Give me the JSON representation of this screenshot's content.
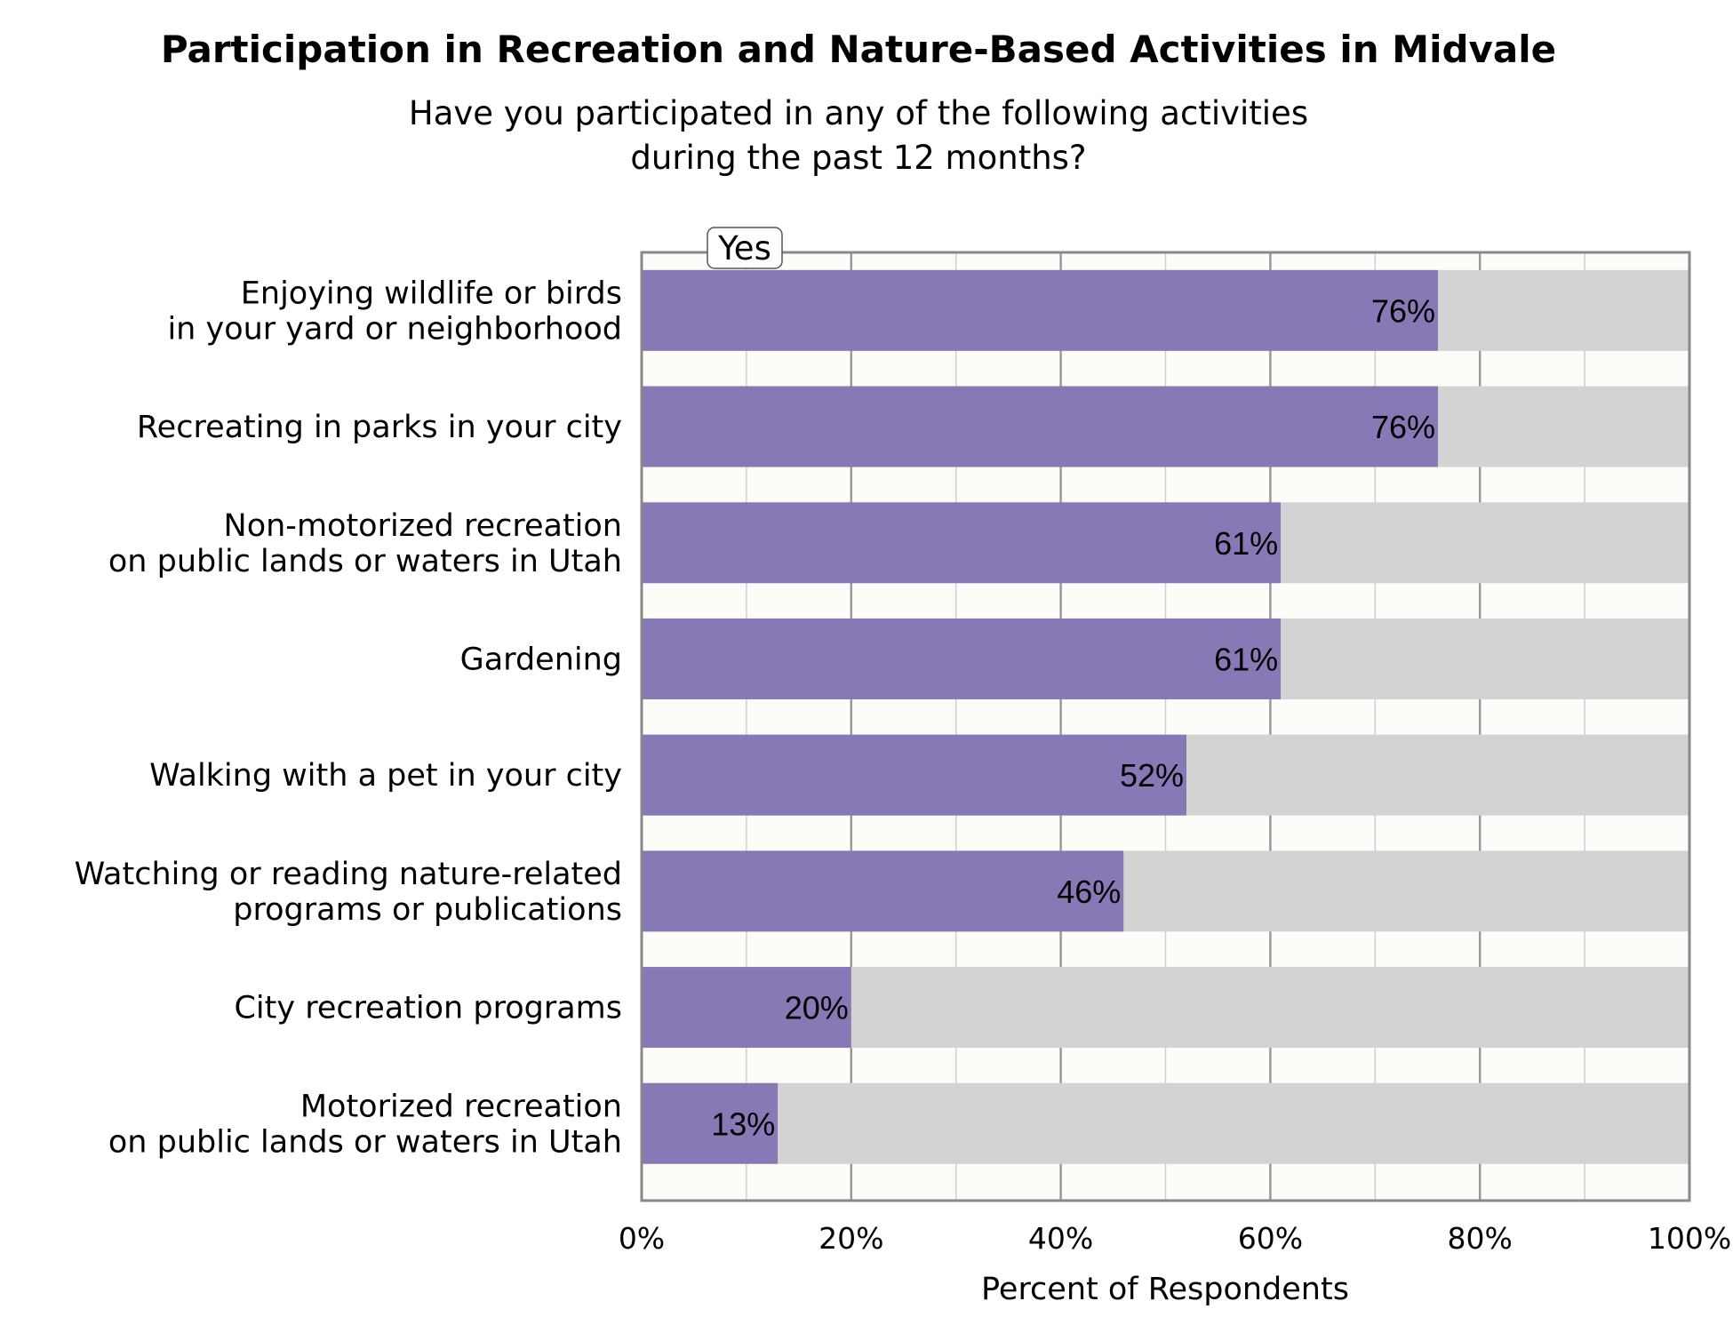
{
  "chart_data": {
    "type": "bar",
    "orientation": "horizontal",
    "stacked": true,
    "title": "Participation in Recreation and Nature-Based Activities in Midvale",
    "subtitle_lines": [
      "Have you participated in any of the following activities",
      "during the past 12 months?"
    ],
    "xlabel": "Percent of Respondents",
    "ylabel": "",
    "xlim": [
      0,
      100
    ],
    "x_ticks": [
      0,
      20,
      40,
      60,
      80,
      100
    ],
    "x_tick_labels": [
      "0%",
      "20%",
      "40%",
      "60%",
      "80%",
      "100%"
    ],
    "grid": true,
    "legend_placement": "top-left",
    "categories": [
      [
        "Enjoying wildlife or birds",
        "in your yard or neighborhood"
      ],
      [
        "Recreating in parks in your city"
      ],
      [
        "Non-motorized recreation",
        "on public lands or waters in Utah"
      ],
      [
        "Gardening"
      ],
      [
        "Walking with a pet in your city"
      ],
      [
        "Watching or reading nature-related",
        "programs or publications"
      ],
      [
        "City recreation programs"
      ],
      [
        "Motorized recreation",
        "on public lands or waters in Utah"
      ]
    ],
    "series": [
      {
        "name": "Yes",
        "values": [
          76,
          76,
          61,
          61,
          52,
          46,
          20,
          13
        ],
        "value_labels": [
          "76%",
          "76%",
          "61%",
          "61%",
          "52%",
          "46%",
          "20%",
          "13%"
        ],
        "color": "#8878b5"
      },
      {
        "values": [
          24,
          24,
          39,
          39,
          48,
          54,
          80,
          87
        ],
        "color": "#d3d3d3"
      }
    ]
  },
  "colors": {
    "plot_background": "#fcfcf9",
    "gridline_major": "#999999",
    "gridline_minor": "#d0d0d0",
    "axis": "#888888"
  }
}
